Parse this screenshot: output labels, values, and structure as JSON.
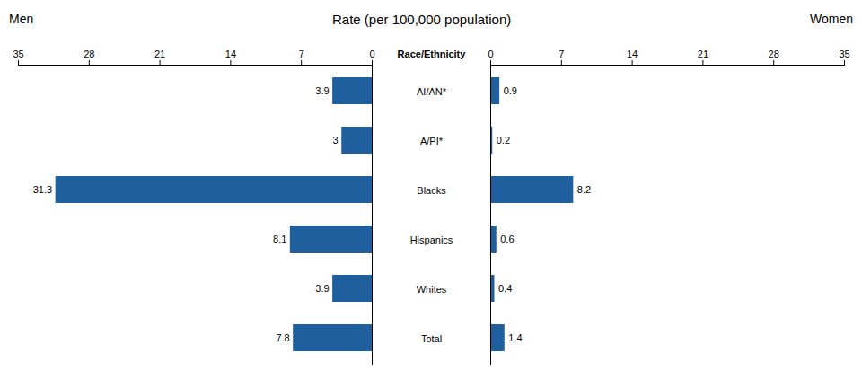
{
  "chart_data": {
    "type": "bar",
    "orientation": "horizontal",
    "title": "Rate (per 100,000 population)",
    "ylabel": "Race/Ethnicity",
    "categories": [
      "AI/AN*",
      "A/PI*",
      "Blacks",
      "Hispanics",
      "Whites",
      "Total"
    ],
    "series": [
      {
        "name": "Men",
        "color": "#1F5F9E",
        "values": [
          3.9,
          3.0,
          31.3,
          8.1,
          3.9,
          7.8
        ]
      },
      {
        "name": "Women",
        "color": "#1F5F9E",
        "values": [
          0.9,
          0.2,
          8.2,
          0.6,
          0.4,
          1.4
        ]
      }
    ],
    "xlim": [
      0,
      35
    ],
    "xticks": [
      0,
      7,
      14,
      21,
      28,
      35
    ],
    "data_labels": true,
    "grid": false
  }
}
